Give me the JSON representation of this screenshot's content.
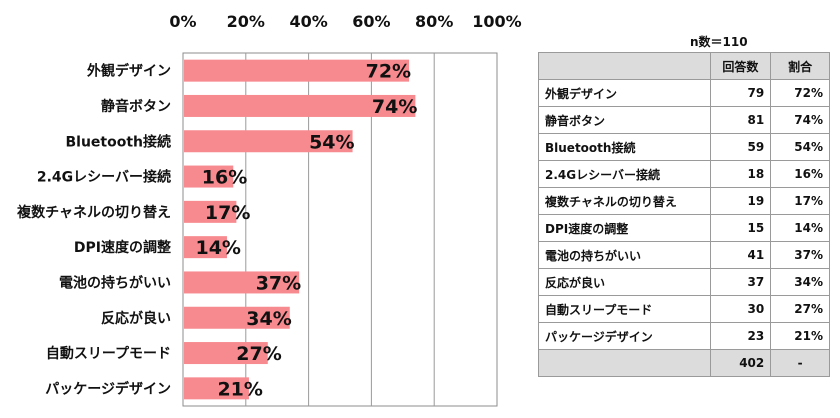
{
  "chart_data": {
    "type": "bar",
    "orientation": "horizontal",
    "categories": [
      "外観デザイン",
      "静音ボタン",
      "Bluetooth接続",
      "2.4Gレシーバー接続",
      "複数チャネルの切り替え",
      "DPI速度の調整",
      "電池の持ちがいい",
      "反応が良い",
      "自動スリープモード",
      "パッケージデザイン"
    ],
    "values": [
      72,
      74,
      54,
      16,
      17,
      14,
      37,
      34,
      27,
      21
    ],
    "value_labels": [
      "72%",
      "74%",
      "54%",
      "16%",
      "17%",
      "14%",
      "37%",
      "34%",
      "27%",
      "21%"
    ],
    "x_ticks": [
      "0%",
      "20%",
      "40%",
      "60%",
      "80%",
      "100%"
    ],
    "xlim": [
      0,
      100
    ],
    "grid": true,
    "bar_color": "#f78a8f"
  },
  "table": {
    "n_label": "n数＝110",
    "headers": [
      "",
      "回答数",
      "割合"
    ],
    "rows": [
      {
        "name": "外観デザイン",
        "count": "79",
        "ratio": "72%"
      },
      {
        "name": "静音ボタン",
        "count": "81",
        "ratio": "74%"
      },
      {
        "name": "Bluetooth接続",
        "count": "59",
        "ratio": "54%"
      },
      {
        "name": "2.4Gレシーバー接続",
        "count": "18",
        "ratio": "16%"
      },
      {
        "name": "複数チャネルの切り替え",
        "count": "19",
        "ratio": "17%"
      },
      {
        "name": "DPI速度の調整",
        "count": "15",
        "ratio": "14%"
      },
      {
        "name": "電池の持ちがいい",
        "count": "41",
        "ratio": "37%"
      },
      {
        "name": "反応が良い",
        "count": "37",
        "ratio": "34%"
      },
      {
        "name": "自動スリープモード",
        "count": "30",
        "ratio": "27%"
      },
      {
        "name": "パッケージデザイン",
        "count": "23",
        "ratio": "21%"
      }
    ],
    "total": {
      "name": "",
      "count": "402",
      "ratio": "-"
    }
  }
}
